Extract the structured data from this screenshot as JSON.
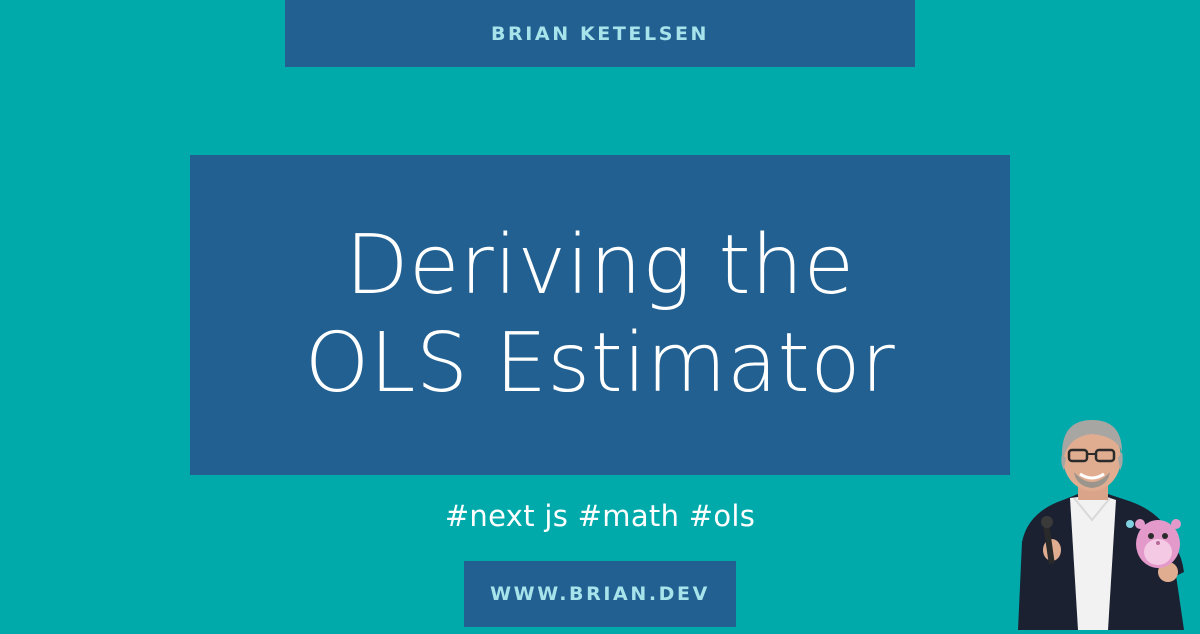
{
  "author_banner": {
    "text": "BRIAN KETELSEN"
  },
  "title": {
    "line1": "Deriving the",
    "line2": "OLS Estimator"
  },
  "tags": "#next js #math #ols",
  "site_banner": {
    "text": "WWW.BRIAN.DEV"
  },
  "colors": {
    "background": "#00aaab",
    "banner": "#216091",
    "banner_text": "#a7e3ea",
    "title_text": "#ffffff"
  },
  "photo": {
    "icon": "speaker-photo-icon"
  }
}
